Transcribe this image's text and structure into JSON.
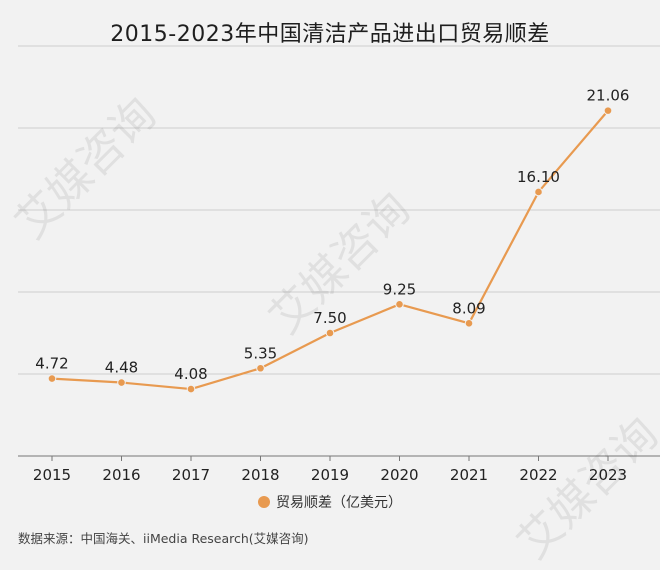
{
  "chart_data": {
    "type": "line",
    "title": "2015-2023年中国清洁产品进出口贸易顺差",
    "categories": [
      "2015",
      "2016",
      "2017",
      "2018",
      "2019",
      "2020",
      "2021",
      "2022",
      "2023"
    ],
    "series": [
      {
        "name": "贸易顺差（亿美元）",
        "values": [
          4.72,
          4.48,
          4.08,
          5.35,
          7.5,
          9.25,
          8.09,
          16.1,
          21.06
        ]
      }
    ],
    "value_labels": [
      "4.72",
      "4.48",
      "4.08",
      "5.35",
      "7.50",
      "9.25",
      "8.09",
      "16.10",
      "21.06"
    ],
    "ylim": [
      0,
      25
    ],
    "grid": true,
    "legend_position": "bottom-center",
    "xlabel": "",
    "ylabel": ""
  },
  "colors": {
    "line": "#e89a50",
    "grid": "#cfcfcf",
    "axis": "#777777",
    "background": "#f2f2f2"
  },
  "source_text": "数据来源：中国海关、iiMedia Research(艾媒咨询)",
  "watermark_text": "艾媒咨询"
}
